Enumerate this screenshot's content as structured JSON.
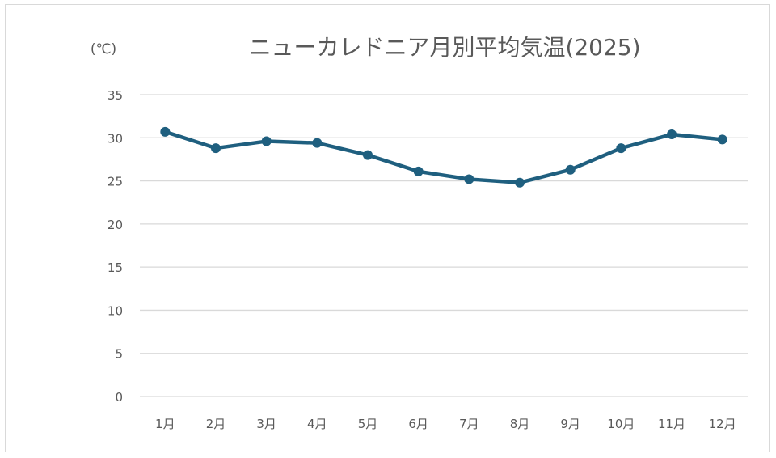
{
  "chart_data": {
    "type": "line",
    "title": "ニューカレドニア月別平均気温(2025)",
    "unit_label": "(℃)",
    "categories": [
      "1月",
      "2月",
      "3月",
      "4月",
      "5月",
      "6月",
      "7月",
      "8月",
      "9月",
      "10月",
      "11月",
      "12月"
    ],
    "series": [
      {
        "values": [
          30.7,
          28.8,
          29.6,
          29.4,
          28.0,
          26.1,
          25.2,
          24.8,
          26.3,
          28.8,
          30.4,
          29.8
        ],
        "color": "#1f5f7f"
      }
    ],
    "yticks": [
      0,
      5,
      10,
      15,
      20,
      25,
      30,
      35
    ],
    "ylim": [
      0,
      35
    ],
    "grid": true,
    "legend": "none"
  }
}
